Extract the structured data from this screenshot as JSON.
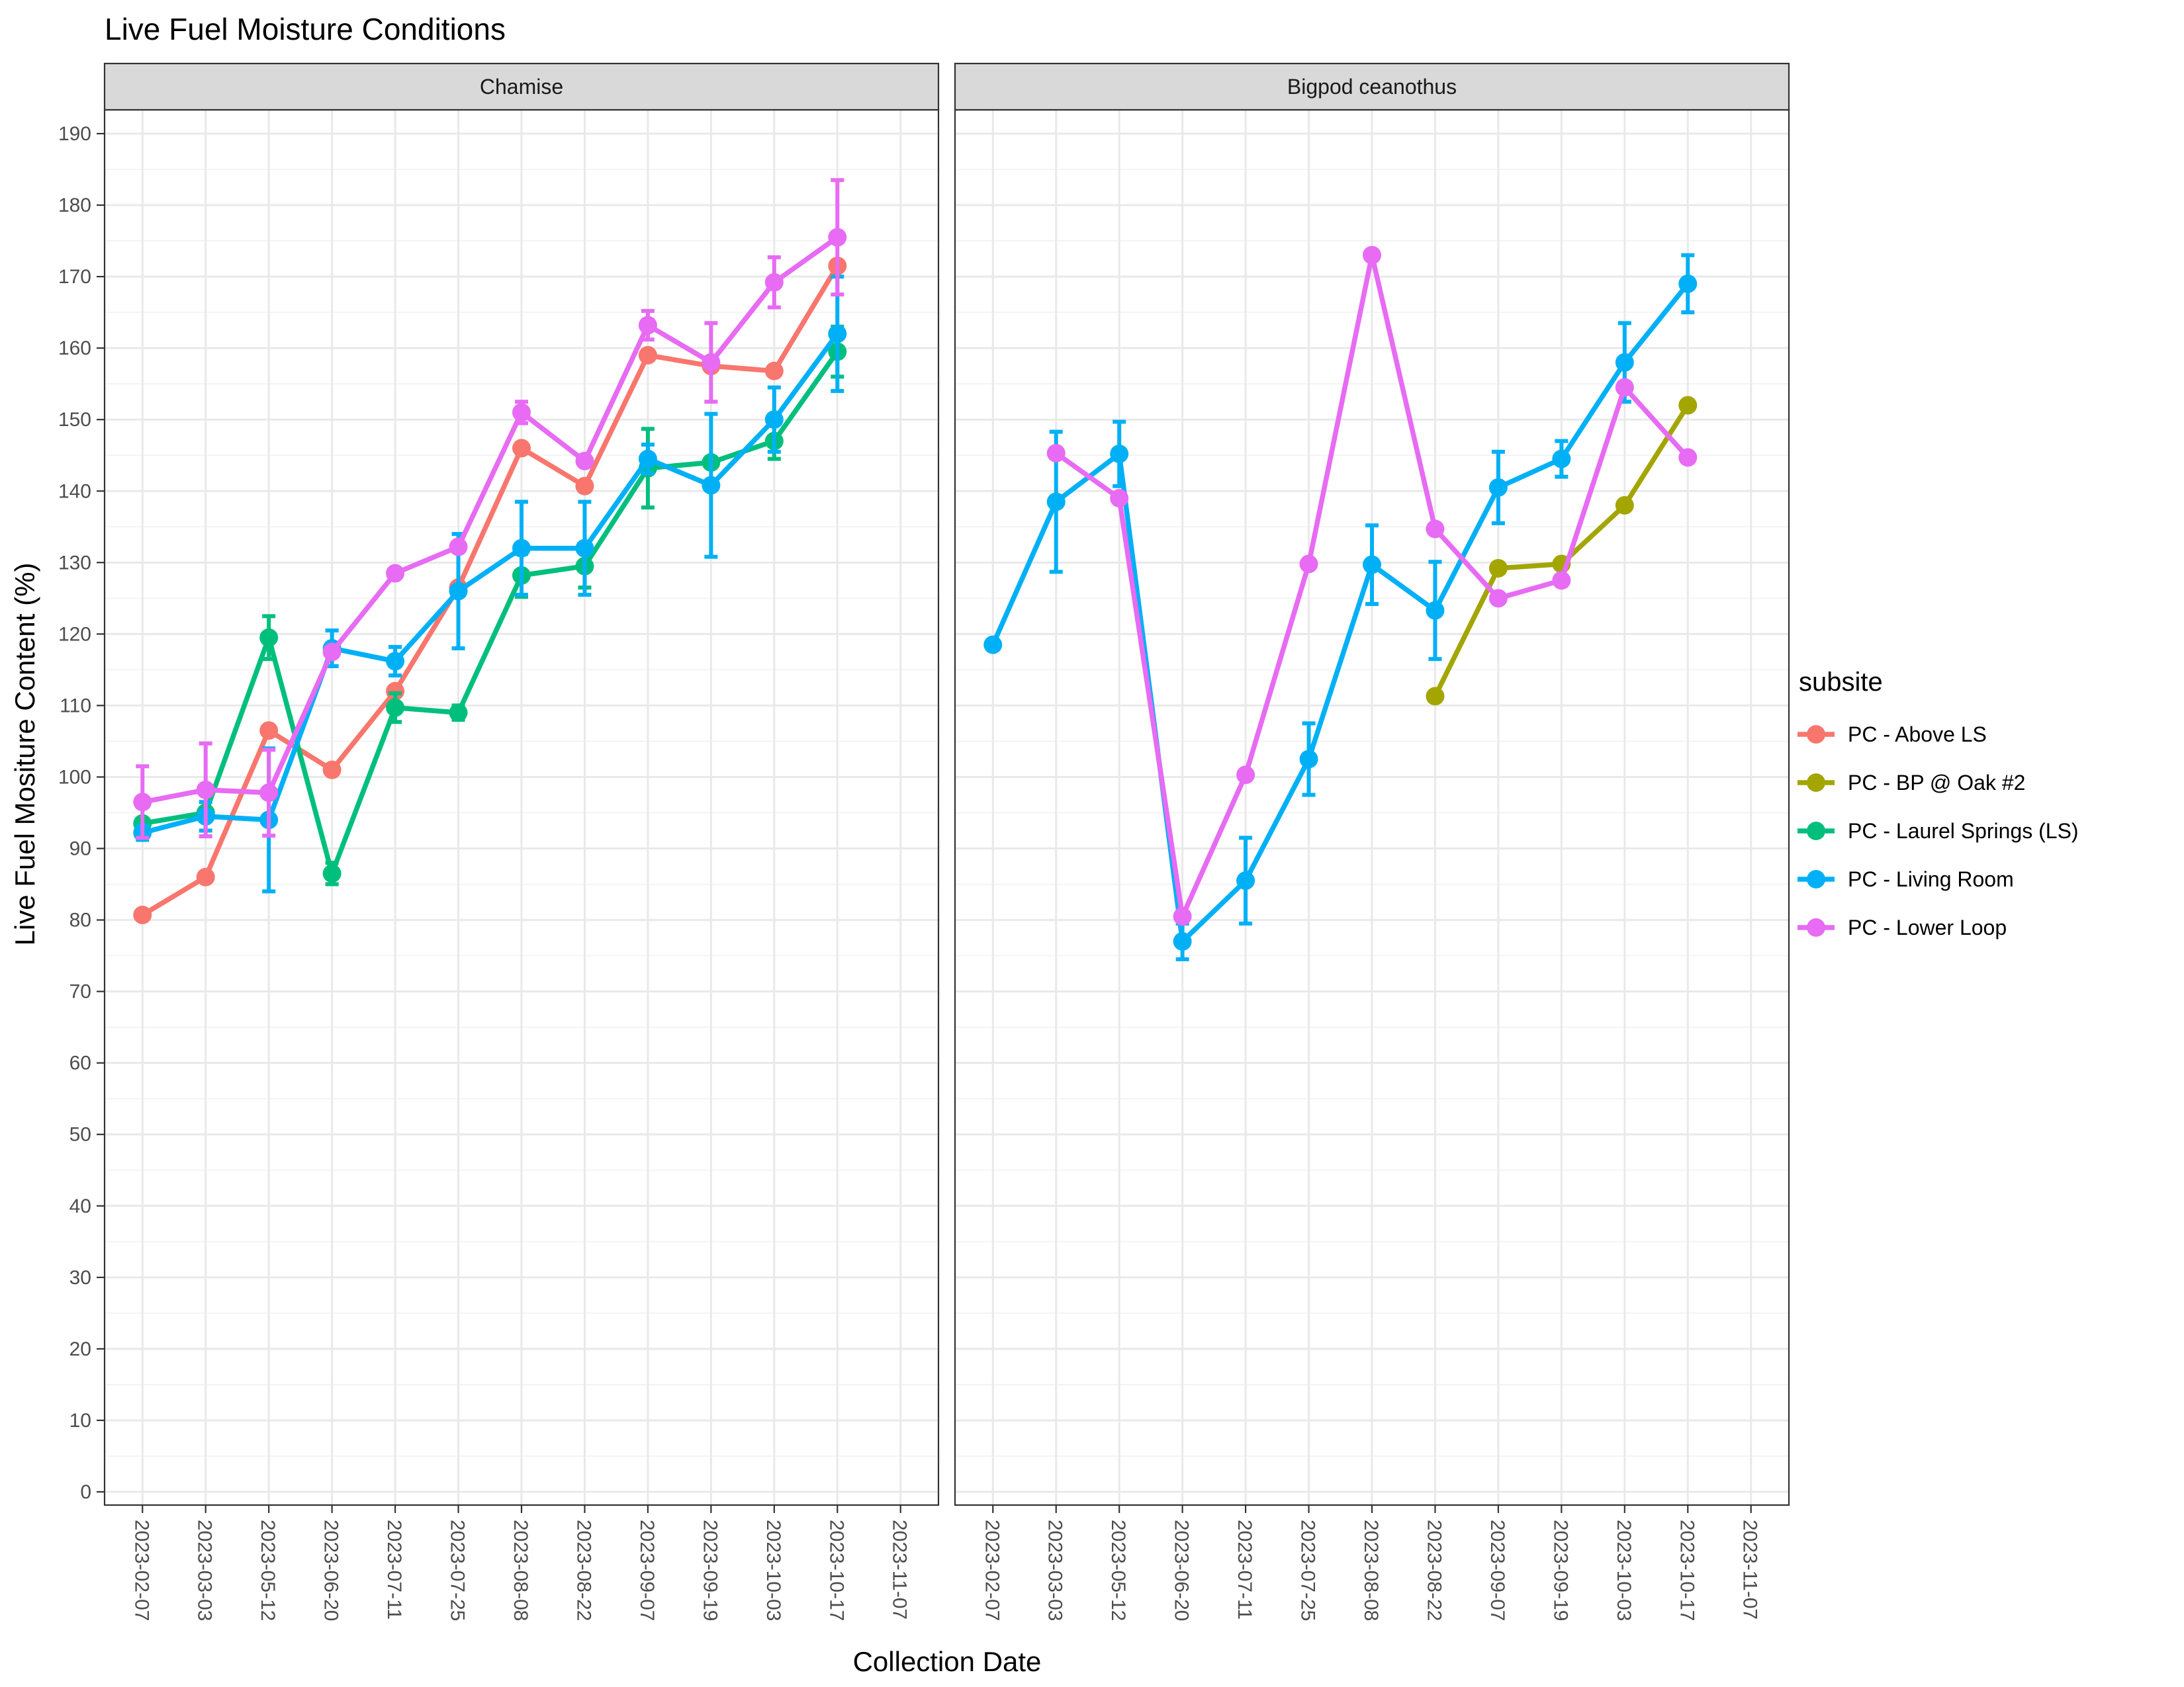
{
  "title": "Live Fuel Moisture Conditions",
  "xlabel": "Collection Date",
  "ylabel": "Live Fuel Mositure Content (%)",
  "legend": {
    "title": "subsite",
    "items": [
      {
        "label": "PC - Above LS",
        "color": "#F8766D"
      },
      {
        "label": "PC - BP @ Oak #2",
        "color": "#A3A500"
      },
      {
        "label": "PC - Laurel Springs (LS)",
        "color": "#00BF7D"
      },
      {
        "label": "PC - Living Room",
        "color": "#00B0F6"
      },
      {
        "label": "PC - Lower Loop",
        "color": "#E76BF3"
      }
    ]
  },
  "chart_data": {
    "type": "line",
    "x": [
      "2023-02-07",
      "2023-03-03",
      "2023-05-12",
      "2023-06-20",
      "2023-07-11",
      "2023-07-25",
      "2023-08-08",
      "2023-08-22",
      "2023-09-07",
      "2023-09-19",
      "2023-10-03",
      "2023-10-17",
      "2023-11-07"
    ],
    "ylim": [
      0,
      190
    ],
    "yticks": [
      0,
      10,
      20,
      30,
      40,
      50,
      60,
      70,
      80,
      90,
      100,
      110,
      120,
      130,
      140,
      150,
      160,
      170,
      180,
      190
    ],
    "grid": true,
    "legend_position": "right",
    "panels": [
      {
        "name": "Chamise",
        "series": [
          {
            "name": "PC - Above LS",
            "color": "#F8766D",
            "values": [
              80.7,
              86.0,
              106.5,
              101.0,
              112.0,
              126.5,
              146.0,
              140.7,
              159.0,
              157.5,
              156.8,
              171.5,
              null
            ],
            "errors": [
              null,
              null,
              null,
              null,
              null,
              null,
              null,
              null,
              null,
              null,
              null,
              null,
              null
            ]
          },
          {
            "name": "PC - Laurel Springs (LS)",
            "color": "#00BF7D",
            "values": [
              93.5,
              95.0,
              119.5,
              86.5,
              109.7,
              109.0,
              128.2,
              129.5,
              143.2,
              144.0,
              147.0,
              159.5,
              null
            ],
            "errors": [
              null,
              null,
              3.0,
              1.5,
              2.0,
              1.0,
              3.0,
              3.0,
              5.5,
              null,
              2.5,
              3.5,
              null
            ]
          },
          {
            "name": "PC - Living Room",
            "color": "#00B0F6",
            "values": [
              92.2,
              94.5,
              94.0,
              118.0,
              116.2,
              126.0,
              132.0,
              132.0,
              144.5,
              140.8,
              150.0,
              162.0,
              null
            ],
            "errors": [
              1.0,
              2.0,
              10.0,
              2.5,
              2.0,
              8.0,
              6.5,
              6.5,
              2.0,
              10.0,
              4.5,
              8.0,
              null
            ]
          },
          {
            "name": "PC - Lower Loop",
            "color": "#E76BF3",
            "values": [
              96.5,
              98.2,
              97.8,
              117.5,
              128.5,
              132.2,
              151.0,
              144.2,
              163.2,
              158.0,
              169.2,
              175.5,
              null
            ],
            "errors": [
              5.0,
              6.5,
              6.0,
              null,
              null,
              null,
              1.5,
              null,
              2.0,
              5.5,
              3.5,
              8.0,
              null
            ]
          }
        ]
      },
      {
        "name": "Bigpod ceanothus",
        "series": [
          {
            "name": "PC - BP @ Oak #2",
            "color": "#A3A500",
            "values": [
              null,
              null,
              null,
              null,
              null,
              null,
              null,
              111.3,
              129.2,
              129.8,
              138.0,
              152.0,
              null
            ],
            "errors": [
              null,
              null,
              null,
              null,
              null,
              null,
              null,
              null,
              null,
              null,
              null,
              null,
              null
            ]
          },
          {
            "name": "PC - Living Room",
            "color": "#00B0F6",
            "values": [
              118.5,
              138.5,
              145.2,
              77.0,
              85.5,
              102.5,
              129.7,
              123.3,
              140.5,
              144.5,
              158.0,
              169.0,
              null
            ],
            "errors": [
              null,
              9.8,
              4.5,
              2.5,
              6.0,
              5.0,
              5.5,
              6.8,
              5.0,
              2.5,
              5.5,
              4.0,
              null
            ]
          },
          {
            "name": "PC - Lower Loop",
            "color": "#E76BF3",
            "values": [
              null,
              145.3,
              139.0,
              80.5,
              100.3,
              129.8,
              173.0,
              134.7,
              125.0,
              127.5,
              154.5,
              144.7,
              null
            ],
            "errors": [
              null,
              null,
              null,
              null,
              null,
              null,
              null,
              null,
              null,
              null,
              null,
              null,
              null
            ]
          }
        ]
      }
    ]
  }
}
